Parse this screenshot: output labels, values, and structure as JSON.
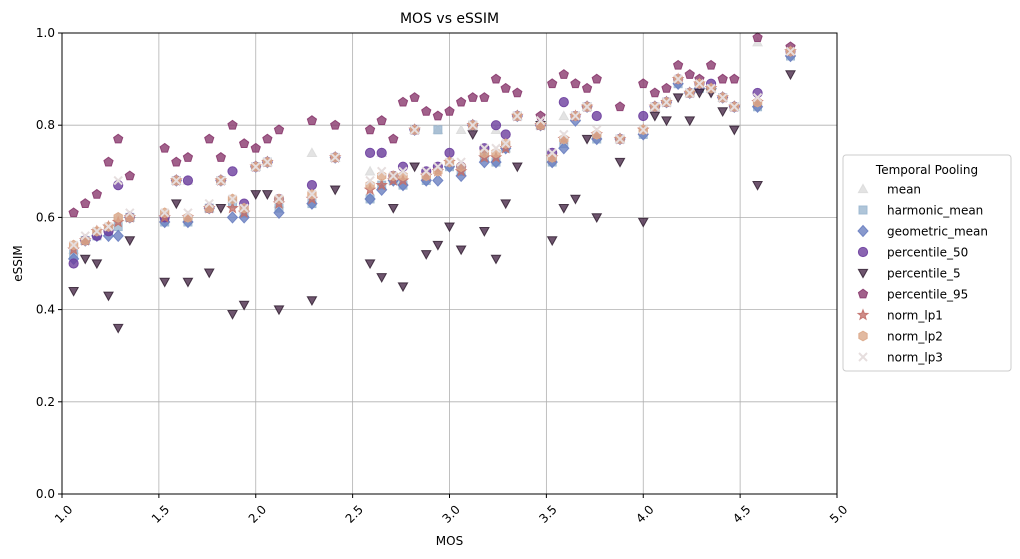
{
  "chart_data": {
    "type": "scatter",
    "title": "MOS vs eSSIM",
    "xlabel": "MOS",
    "ylabel": "eSSIM",
    "xlim": [
      1.0,
      5.0
    ],
    "ylim": [
      0.0,
      1.0
    ],
    "xticks": [
      "1.0",
      "1.5",
      "2.0",
      "2.5",
      "3.0",
      "3.5",
      "4.0",
      "4.5",
      "5.0"
    ],
    "yticks": [
      "0.0",
      "0.2",
      "0.4",
      "0.6",
      "0.8",
      "1.0"
    ],
    "grid": true,
    "legend": {
      "title": "Temporal Pooling",
      "placement": "center-right-outside"
    },
    "series": [
      {
        "name": "mean",
        "color": "#dcdcdc",
        "marker": "triangle-up",
        "x": [
          1.06,
          1.12,
          1.18,
          1.24,
          1.29,
          1.35,
          1.53,
          1.59,
          1.65,
          1.76,
          1.82,
          1.88,
          1.94,
          2.0,
          2.06,
          2.12,
          2.29,
          2.41,
          2.59,
          2.65,
          2.71,
          2.76,
          2.82,
          2.88,
          2.94,
          3.0,
          3.06,
          3.12,
          3.18,
          3.24,
          3.29,
          3.35,
          3.47,
          3.53,
          3.59,
          3.65,
          3.71,
          3.76,
          3.88,
          4.0,
          4.06,
          4.12,
          4.18,
          4.24,
          4.29,
          4.35,
          4.41,
          4.47,
          4.59,
          4.76
        ],
        "y": [
          0.53,
          0.55,
          0.57,
          0.58,
          0.6,
          0.6,
          0.6,
          0.68,
          0.68,
          0.62,
          0.68,
          0.64,
          0.62,
          0.71,
          0.72,
          0.63,
          0.74,
          0.73,
          0.7,
          0.74,
          0.69,
          0.68,
          0.79,
          0.69,
          0.79,
          0.72,
          0.79,
          0.8,
          0.74,
          0.79,
          0.75,
          0.82,
          0.8,
          0.73,
          0.82,
          0.82,
          0.84,
          0.78,
          0.77,
          0.79,
          0.84,
          0.85,
          0.9,
          0.87,
          0.89,
          0.88,
          0.86,
          0.84,
          0.98,
          0.96
        ]
      },
      {
        "name": "harmonic_mean",
        "color": "#9bb7cf",
        "marker": "square",
        "x": [
          1.06,
          1.12,
          1.18,
          1.24,
          1.29,
          1.35,
          1.53,
          1.59,
          1.65,
          1.76,
          1.82,
          1.88,
          1.94,
          2.0,
          2.06,
          2.12,
          2.29,
          2.41,
          2.59,
          2.65,
          2.71,
          2.76,
          2.82,
          2.88,
          2.94,
          3.0,
          3.06,
          3.12,
          3.18,
          3.24,
          3.29,
          3.35,
          3.47,
          3.53,
          3.59,
          3.65,
          3.71,
          3.76,
          3.88,
          4.0,
          4.06,
          4.12,
          4.18,
          4.24,
          4.29,
          4.35,
          4.41,
          4.47,
          4.59,
          4.76
        ],
        "y": [
          0.52,
          0.55,
          0.56,
          0.57,
          0.58,
          0.6,
          0.59,
          0.68,
          0.59,
          0.62,
          0.68,
          0.63,
          0.61,
          0.71,
          0.72,
          0.62,
          0.63,
          0.73,
          0.64,
          0.67,
          0.68,
          0.67,
          0.79,
          0.68,
          0.79,
          0.71,
          0.7,
          0.8,
          0.73,
          0.72,
          0.75,
          0.82,
          0.8,
          0.72,
          0.76,
          0.82,
          0.84,
          0.77,
          0.77,
          0.78,
          0.84,
          0.85,
          0.89,
          0.87,
          0.88,
          0.88,
          0.86,
          0.84,
          0.84,
          0.95
        ]
      },
      {
        "name": "geometric_mean",
        "color": "#6a7fc1",
        "marker": "diamond",
        "x": [
          1.06,
          1.12,
          1.18,
          1.24,
          1.29,
          1.35,
          1.53,
          1.59,
          1.65,
          1.76,
          1.82,
          1.88,
          1.94,
          2.0,
          2.06,
          2.12,
          2.29,
          2.41,
          2.59,
          2.65,
          2.71,
          2.76,
          2.82,
          2.88,
          2.94,
          3.0,
          3.06,
          3.12,
          3.18,
          3.24,
          3.29,
          3.35,
          3.47,
          3.53,
          3.59,
          3.65,
          3.71,
          3.76,
          3.88,
          4.0,
          4.06,
          4.12,
          4.18,
          4.24,
          4.29,
          4.35,
          4.41,
          4.47,
          4.59,
          4.76
        ],
        "y": [
          0.51,
          0.55,
          0.56,
          0.56,
          0.56,
          0.6,
          0.59,
          0.68,
          0.59,
          0.62,
          0.68,
          0.6,
          0.6,
          0.71,
          0.72,
          0.61,
          0.63,
          0.73,
          0.64,
          0.66,
          0.68,
          0.67,
          0.79,
          0.68,
          0.68,
          0.71,
          0.69,
          0.8,
          0.72,
          0.72,
          0.75,
          0.82,
          0.8,
          0.72,
          0.75,
          0.81,
          0.84,
          0.77,
          0.77,
          0.78,
          0.84,
          0.85,
          0.89,
          0.87,
          0.88,
          0.88,
          0.86,
          0.84,
          0.84,
          0.95
        ]
      },
      {
        "name": "percentile_50",
        "color": "#6d3f9e",
        "marker": "circle",
        "x": [
          1.06,
          1.12,
          1.18,
          1.24,
          1.29,
          1.35,
          1.53,
          1.59,
          1.65,
          1.76,
          1.82,
          1.88,
          1.94,
          2.0,
          2.06,
          2.12,
          2.29,
          2.41,
          2.59,
          2.65,
          2.71,
          2.76,
          2.82,
          2.88,
          2.94,
          3.0,
          3.06,
          3.12,
          3.18,
          3.24,
          3.29,
          3.35,
          3.47,
          3.53,
          3.59,
          3.65,
          3.71,
          3.76,
          3.88,
          4.0,
          4.06,
          4.12,
          4.18,
          4.24,
          4.29,
          4.35,
          4.41,
          4.47,
          4.59,
          4.76
        ],
        "y": [
          0.5,
          0.55,
          0.56,
          0.57,
          0.67,
          0.6,
          0.6,
          0.68,
          0.68,
          0.62,
          0.68,
          0.7,
          0.63,
          0.71,
          0.72,
          0.64,
          0.67,
          0.73,
          0.74,
          0.74,
          0.69,
          0.71,
          0.79,
          0.7,
          0.71,
          0.74,
          0.71,
          0.8,
          0.75,
          0.8,
          0.78,
          0.82,
          0.8,
          0.74,
          0.85,
          0.82,
          0.84,
          0.82,
          0.77,
          0.82,
          0.84,
          0.85,
          0.9,
          0.87,
          0.89,
          0.89,
          0.86,
          0.84,
          0.87,
          0.96
        ]
      },
      {
        "name": "percentile_5",
        "color": "#4a2a4a",
        "marker": "triangle-down",
        "x": [
          1.06,
          1.12,
          1.18,
          1.24,
          1.29,
          1.35,
          1.53,
          1.59,
          1.65,
          1.76,
          1.82,
          1.88,
          1.94,
          2.0,
          2.06,
          2.12,
          2.29,
          2.41,
          2.59,
          2.65,
          2.71,
          2.76,
          2.82,
          2.88,
          2.94,
          3.0,
          3.06,
          3.12,
          3.18,
          3.24,
          3.29,
          3.35,
          3.47,
          3.53,
          3.59,
          3.65,
          3.71,
          3.76,
          3.88,
          4.0,
          4.06,
          4.12,
          4.18,
          4.24,
          4.29,
          4.35,
          4.41,
          4.47,
          4.59,
          4.76
        ],
        "y": [
          0.44,
          0.51,
          0.5,
          0.43,
          0.36,
          0.55,
          0.46,
          0.63,
          0.46,
          0.48,
          0.62,
          0.39,
          0.41,
          0.65,
          0.65,
          0.4,
          0.42,
          0.66,
          0.5,
          0.47,
          0.62,
          0.45,
          0.71,
          0.52,
          0.54,
          0.58,
          0.53,
          0.78,
          0.57,
          0.51,
          0.63,
          0.71,
          0.8,
          0.55,
          0.62,
          0.64,
          0.77,
          0.6,
          0.72,
          0.59,
          0.82,
          0.81,
          0.86,
          0.81,
          0.87,
          0.87,
          0.83,
          0.79,
          0.67,
          0.91
        ]
      },
      {
        "name": "percentile_95",
        "color": "#8a3a6e",
        "marker": "pentagon",
        "x": [
          1.06,
          1.12,
          1.18,
          1.24,
          1.29,
          1.35,
          1.53,
          1.59,
          1.65,
          1.76,
          1.82,
          1.88,
          1.94,
          2.0,
          2.06,
          2.12,
          2.29,
          2.41,
          2.59,
          2.65,
          2.71,
          2.76,
          2.82,
          2.88,
          2.94,
          3.0,
          3.06,
          3.12,
          3.18,
          3.24,
          3.29,
          3.35,
          3.47,
          3.53,
          3.59,
          3.65,
          3.71,
          3.76,
          3.88,
          4.0,
          4.06,
          4.12,
          4.18,
          4.24,
          4.29,
          4.35,
          4.41,
          4.47,
          4.59,
          4.76
        ],
        "y": [
          0.61,
          0.63,
          0.65,
          0.72,
          0.77,
          0.69,
          0.75,
          0.72,
          0.73,
          0.77,
          0.73,
          0.8,
          0.76,
          0.75,
          0.77,
          0.79,
          0.81,
          0.8,
          0.79,
          0.81,
          0.77,
          0.85,
          0.86,
          0.83,
          0.82,
          0.83,
          0.85,
          0.86,
          0.86,
          0.9,
          0.88,
          0.87,
          0.82,
          0.89,
          0.91,
          0.89,
          0.88,
          0.9,
          0.84,
          0.89,
          0.87,
          0.88,
          0.93,
          0.91,
          0.9,
          0.93,
          0.9,
          0.9,
          0.99,
          0.97
        ]
      },
      {
        "name": "norm_lp1",
        "color": "#c2716c",
        "marker": "star",
        "x": [
          1.06,
          1.12,
          1.18,
          1.24,
          1.29,
          1.35,
          1.53,
          1.59,
          1.65,
          1.76,
          1.82,
          1.88,
          1.94,
          2.0,
          2.06,
          2.12,
          2.29,
          2.41,
          2.59,
          2.65,
          2.71,
          2.76,
          2.82,
          2.88,
          2.94,
          3.0,
          3.06,
          3.12,
          3.18,
          3.24,
          3.29,
          3.35,
          3.47,
          3.53,
          3.59,
          3.65,
          3.71,
          3.76,
          3.88,
          4.0,
          4.06,
          4.12,
          4.18,
          4.24,
          4.29,
          4.35,
          4.41,
          4.47,
          4.59,
          4.76
        ],
        "y": [
          0.53,
          0.55,
          0.57,
          0.58,
          0.59,
          0.6,
          0.6,
          0.68,
          0.6,
          0.62,
          0.68,
          0.62,
          0.61,
          0.71,
          0.72,
          0.63,
          0.64,
          0.73,
          0.66,
          0.67,
          0.68,
          0.68,
          0.79,
          0.69,
          0.7,
          0.72,
          0.7,
          0.8,
          0.73,
          0.73,
          0.75,
          0.82,
          0.8,
          0.73,
          0.77,
          0.82,
          0.84,
          0.78,
          0.77,
          0.79,
          0.84,
          0.85,
          0.9,
          0.87,
          0.89,
          0.88,
          0.86,
          0.84,
          0.85,
          0.96
        ]
      },
      {
        "name": "norm_lp2",
        "color": "#dba98a",
        "marker": "hexagon",
        "x": [
          1.06,
          1.12,
          1.18,
          1.24,
          1.29,
          1.35,
          1.53,
          1.59,
          1.65,
          1.76,
          1.82,
          1.88,
          1.94,
          2.0,
          2.06,
          2.12,
          2.29,
          2.41,
          2.59,
          2.65,
          2.71,
          2.76,
          2.82,
          2.88,
          2.94,
          3.0,
          3.06,
          3.12,
          3.18,
          3.24,
          3.29,
          3.35,
          3.47,
          3.53,
          3.59,
          3.65,
          3.71,
          3.76,
          3.88,
          4.0,
          4.06,
          4.12,
          4.18,
          4.24,
          4.29,
          4.35,
          4.41,
          4.47,
          4.59,
          4.76
        ],
        "y": [
          0.54,
          0.55,
          0.57,
          0.58,
          0.6,
          0.6,
          0.61,
          0.68,
          0.6,
          0.62,
          0.68,
          0.64,
          0.62,
          0.71,
          0.72,
          0.64,
          0.65,
          0.73,
          0.67,
          0.69,
          0.69,
          0.69,
          0.79,
          0.69,
          0.7,
          0.72,
          0.71,
          0.8,
          0.74,
          0.74,
          0.76,
          0.82,
          0.8,
          0.73,
          0.77,
          0.82,
          0.84,
          0.78,
          0.77,
          0.79,
          0.84,
          0.85,
          0.9,
          0.87,
          0.89,
          0.88,
          0.86,
          0.84,
          0.85,
          0.96
        ]
      },
      {
        "name": "norm_lp3",
        "color": "#e6dede",
        "marker": "x",
        "x": [
          1.06,
          1.12,
          1.18,
          1.24,
          1.29,
          1.35,
          1.53,
          1.59,
          1.65,
          1.76,
          1.82,
          1.88,
          1.94,
          2.0,
          2.06,
          2.12,
          2.29,
          2.41,
          2.59,
          2.65,
          2.71,
          2.76,
          2.82,
          2.88,
          2.94,
          3.0,
          3.06,
          3.12,
          3.18,
          3.24,
          3.29,
          3.35,
          3.47,
          3.53,
          3.59,
          3.65,
          3.71,
          3.76,
          3.88,
          4.0,
          4.06,
          4.12,
          4.18,
          4.24,
          4.29,
          4.35,
          4.41,
          4.47,
          4.59,
          4.76
        ],
        "y": [
          0.54,
          0.56,
          0.57,
          0.58,
          0.68,
          0.61,
          0.61,
          0.68,
          0.61,
          0.63,
          0.68,
          0.64,
          0.62,
          0.71,
          0.72,
          0.64,
          0.65,
          0.73,
          0.68,
          0.7,
          0.69,
          0.7,
          0.79,
          0.7,
          0.71,
          0.72,
          0.72,
          0.8,
          0.75,
          0.75,
          0.76,
          0.82,
          0.81,
          0.74,
          0.78,
          0.82,
          0.84,
          0.79,
          0.77,
          0.79,
          0.84,
          0.85,
          0.9,
          0.87,
          0.89,
          0.88,
          0.86,
          0.84,
          0.86,
          0.96
        ]
      }
    ]
  }
}
